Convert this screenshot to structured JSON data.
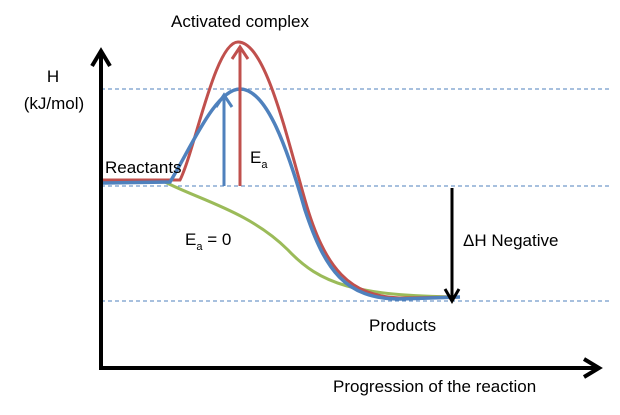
{
  "labels": {
    "peak": "Activated complex",
    "y_axis_symbol": "H",
    "y_axis_unit": "(kJ/mol)",
    "reactants": "Reactants",
    "activation_energy": "E",
    "activation_energy_sub": "a",
    "zero_activation": "E",
    "zero_activation_sub": "a",
    "zero_activation_value": " = 0",
    "enthalpy_change": "ΔH Negative",
    "products": "Products",
    "x_axis": "Progression of the reaction"
  },
  "colors": {
    "uncatalyzed": "#c0504d",
    "catalyzed": "#4f81bd",
    "no_barrier": "#9bbb59",
    "guide_lines": "#4f81bd",
    "axes": "#000000"
  }
}
